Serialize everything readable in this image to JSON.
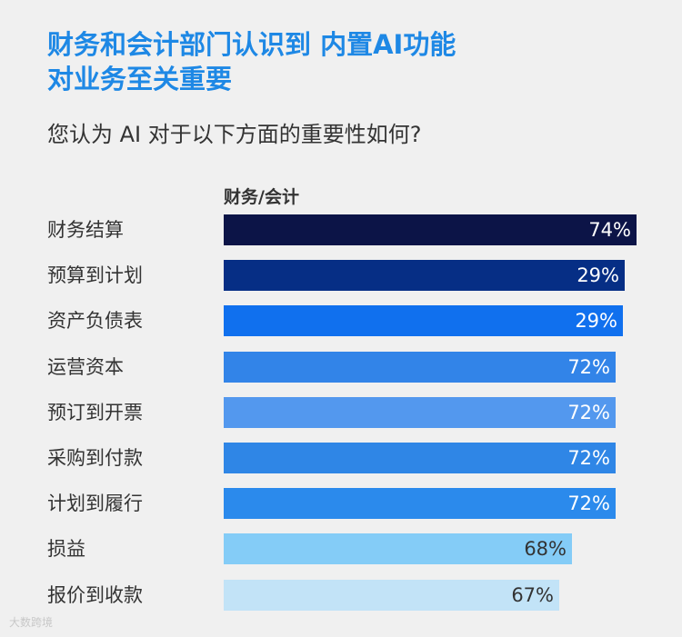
{
  "title_lines": [
    "财务和会计部门认识到 内置AI功能",
    "对业务至关重要"
  ],
  "subtitle": "您认为 AI 对于以下方面的重要性如何?",
  "series_label": "财务/会计",
  "watermark": "大数跨境",
  "chart_data": {
    "type": "bar",
    "orientation": "horizontal",
    "title": "财务和会计部门认识到 内置AI功能 对业务至关重要",
    "subtitle": "您认为 AI 对于以下方面的重要性如何?",
    "categories": [
      "财务结算",
      "预算到计划",
      "资产负债表",
      "运营资本",
      "预订到开票",
      "采购到付款",
      "计划到履行",
      "损益",
      "报价到收款"
    ],
    "series": [
      {
        "name": "财务/会计",
        "values": [
          74,
          29,
          29,
          72,
          72,
          72,
          72,
          68,
          67
        ],
        "labels": [
          "74%",
          "29%",
          "29%",
          "72%",
          "72%",
          "72%",
          "72%",
          "68%",
          "67%"
        ],
        "colors": [
          "#0c1447",
          "#062e85",
          "#1070ee",
          "#3284e8",
          "#5398ee",
          "#2f86e6",
          "#2b8aec",
          "#84ccf7",
          "#c2e3f7"
        ]
      }
    ],
    "grid": false,
    "legend": "none"
  }
}
